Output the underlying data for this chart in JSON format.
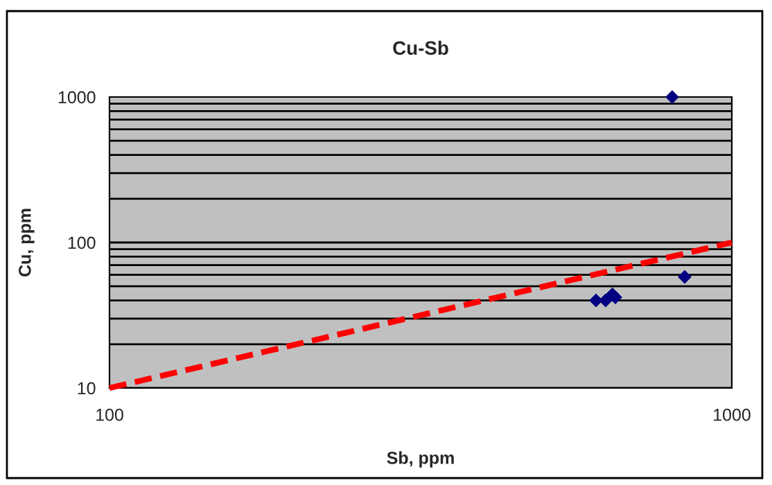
{
  "chart_data": {
    "type": "scatter",
    "title": "Cu-Sb",
    "xlabel": "Sb, ppm",
    "ylabel": "Cu, ppm",
    "log": "xy",
    "xlim": [
      100,
      1000
    ],
    "ylim": [
      10,
      1000
    ],
    "xticks": [
      100,
      1000
    ],
    "yticks": [
      10,
      100,
      1000
    ],
    "grid": "y",
    "legend": false,
    "series": [
      {
        "color": "#000080",
        "marker": "diamond",
        "x": [
          605,
          627,
          643,
          650,
          802,
          840
        ],
        "values": [
          40,
          40,
          44,
          42,
          1000,
          58
        ]
      },
      {
        "type": "line",
        "color": "#ff0000",
        "line_style": "dashed",
        "marker": "none",
        "x": [
          100,
          1000
        ],
        "values": [
          10,
          100
        ]
      }
    ]
  }
}
